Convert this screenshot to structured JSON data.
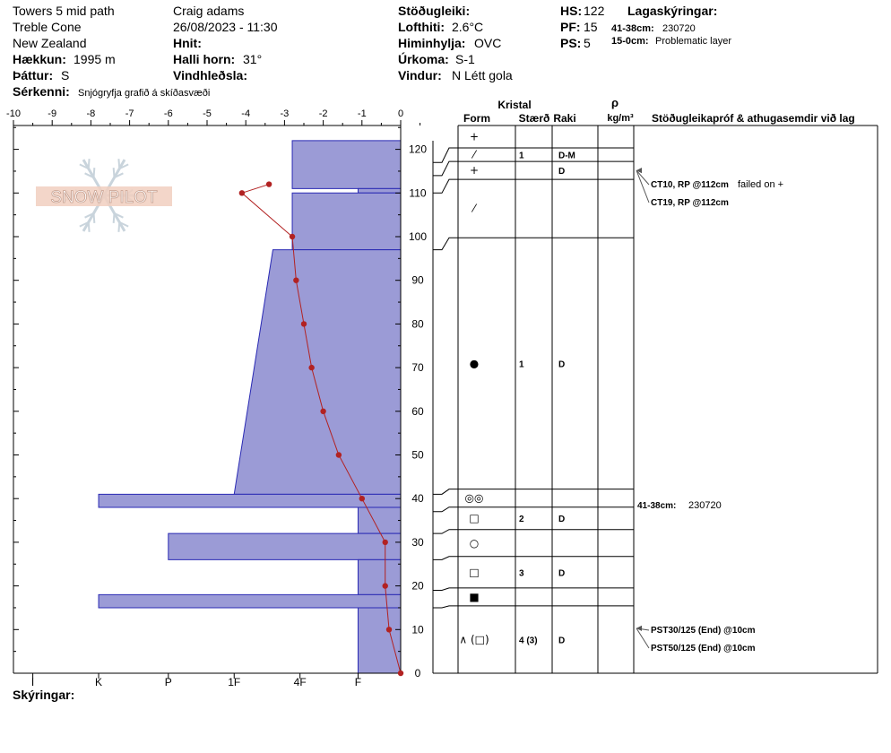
{
  "header": {
    "location": "Towers 5 mid path",
    "area": "Treble Cone",
    "region": "New Zealand",
    "elevation_label": "Hækkun:",
    "elevation_value": "1995 m",
    "aspect_label": "Þáttur:",
    "aspect_value": "S",
    "specifics_label": "Sérkenni:",
    "specifics_value": "Snjógryfja grafið á skíðasvæði",
    "observer": "Craig adams",
    "datetime": "26/08/2023 - 11:30",
    "coords_label": "Hnit:",
    "slope_label": "Halli horn:",
    "slope_value": "31°",
    "wind_loading_label": "Vindhleðsla:",
    "stability_label": "Stöðugleiki:",
    "air_temp_label": "Lofthiti:",
    "air_temp_value": "2.6°C",
    "sky_label": "Himinhylja:",
    "sky_value": "OVC",
    "precip_label": "Úrkoma:",
    "precip_value": "S-1",
    "wind_label": "Vindur:",
    "wind_value": "N Létt gola",
    "hs_label": "HS:",
    "hs_value": "122",
    "pf_label": "PF:",
    "pf_value": "15",
    "ps_label": "PS:",
    "ps_value": "5",
    "layer_notes_label": "Lagaskýringar:",
    "layer_note_1_range": "41-38cm:",
    "layer_note_1_text": "230720",
    "layer_note_2_range": "15-0cm:",
    "layer_note_2_text": "Problematic layer",
    "legend_label": "Skýringar:"
  },
  "colors": {
    "hardness_fill": "#9b9bd6",
    "hardness_edge": "#2a2ab4",
    "temp": "#b22222",
    "grid": "#000000"
  },
  "logo_text": "SNOW PILOT",
  "chart_data": {
    "type": "snow-profile",
    "temp_axis": {
      "min": -10,
      "max": 0,
      "ticks": [
        "-10",
        "-9",
        "-8",
        "-7",
        "-6",
        "-5",
        "-4",
        "-3",
        "-2",
        "-1",
        "0"
      ]
    },
    "height_axis": {
      "min": 0,
      "max": 125,
      "ticks": [
        0,
        10,
        20,
        30,
        40,
        50,
        60,
        70,
        80,
        90,
        100,
        110,
        120
      ]
    },
    "hardness_ticks": [
      "I",
      "K",
      "P",
      "1F",
      "4F",
      "F"
    ],
    "hardness_layers": [
      {
        "bottom": 111,
        "top": 122,
        "hardness_top": 2.8,
        "hardness_bottom": 2.8
      },
      {
        "bottom": 110,
        "top": 111,
        "hardness_top": 1.1,
        "hardness_bottom": 1.1
      },
      {
        "bottom": 97,
        "top": 110,
        "hardness_top": 2.8,
        "hardness_bottom": 2.8
      },
      {
        "bottom": 41,
        "top": 97,
        "hardness_top": 3.3,
        "hardness_bottom": 4.3
      },
      {
        "bottom": 38,
        "top": 41,
        "hardness_top": 7.8,
        "hardness_bottom": 7.8
      },
      {
        "bottom": 32,
        "top": 38,
        "hardness_top": 1.1,
        "hardness_bottom": 1.1
      },
      {
        "bottom": 26,
        "top": 32,
        "hardness_top": 6.0,
        "hardness_bottom": 6.0
      },
      {
        "bottom": 18,
        "top": 26,
        "hardness_top": 1.1,
        "hardness_bottom": 1.1
      },
      {
        "bottom": 15,
        "top": 18,
        "hardness_top": 7.8,
        "hardness_bottom": 7.8
      },
      {
        "bottom": 0,
        "top": 15,
        "hardness_top": 1.1,
        "hardness_bottom": 1.1
      }
    ],
    "temperature_profile": [
      {
        "h": 0,
        "t": 0.0
      },
      {
        "h": 10,
        "t": -0.3
      },
      {
        "h": 20,
        "t": -0.4
      },
      {
        "h": 30,
        "t": -0.4
      },
      {
        "h": 40,
        "t": -1.0
      },
      {
        "h": 50,
        "t": -1.6
      },
      {
        "h": 60,
        "t": -2.0
      },
      {
        "h": 70,
        "t": -2.3
      },
      {
        "h": 80,
        "t": -2.5
      },
      {
        "h": 90,
        "t": -2.7
      },
      {
        "h": 100,
        "t": -2.8
      },
      {
        "h": 110,
        "t": -4.1
      },
      {
        "h": 112,
        "t": -3.4
      }
    ],
    "columns": {
      "crystal": "Kristal",
      "form": "Form",
      "size": "Stærð",
      "moisture": "Raki",
      "rho": "ρ",
      "density_unit": "kg/m³",
      "stability": "Stöðugleikapróf & athugasemdir við lag"
    },
    "layers_table": [
      {
        "top": 122,
        "bottom": 117,
        "form": "+",
        "size": "",
        "moisture": ""
      },
      {
        "top": 117,
        "bottom": 114,
        "form": "⁄",
        "size": "1",
        "moisture": "D-M"
      },
      {
        "top": 114,
        "bottom": 110,
        "form": "+",
        "size": "",
        "moisture": "D"
      },
      {
        "top": 110,
        "bottom": 97,
        "form": "⁄",
        "size": "",
        "moisture": ""
      },
      {
        "top": 97,
        "bottom": 41,
        "form": "●",
        "size": "1",
        "moisture": "D"
      },
      {
        "top": 41,
        "bottom": 37,
        "form": "◎◎",
        "size": "",
        "moisture": ""
      },
      {
        "top": 37,
        "bottom": 32,
        "form": "□",
        "size": "2",
        "moisture": "D"
      },
      {
        "top": 32,
        "bottom": 26,
        "form": "○",
        "size": "",
        "moisture": ""
      },
      {
        "top": 26,
        "bottom": 19,
        "form": "□",
        "size": "3",
        "moisture": "D"
      },
      {
        "top": 19,
        "bottom": 15,
        "form": "■",
        "size": "",
        "moisture": ""
      },
      {
        "top": 15,
        "bottom": 0,
        "form": "∧ (□)",
        "size": "4 (3)",
        "moisture": "D"
      }
    ],
    "stability_notes": [
      {
        "h": 112,
        "text": "CT10, RP @112cm",
        "extra": "failed on +"
      },
      {
        "h": 112,
        "text": "CT19, RP @112cm",
        "extra": ""
      },
      {
        "h": 10,
        "text": "PST30/125 (End) @10cm",
        "extra": ""
      },
      {
        "h": 10,
        "text": "PST50/125 (End) @10cm",
        "extra": ""
      }
    ],
    "layer_comments": [
      {
        "h": 39,
        "range": "41-38cm:",
        "text": "230720"
      }
    ]
  }
}
